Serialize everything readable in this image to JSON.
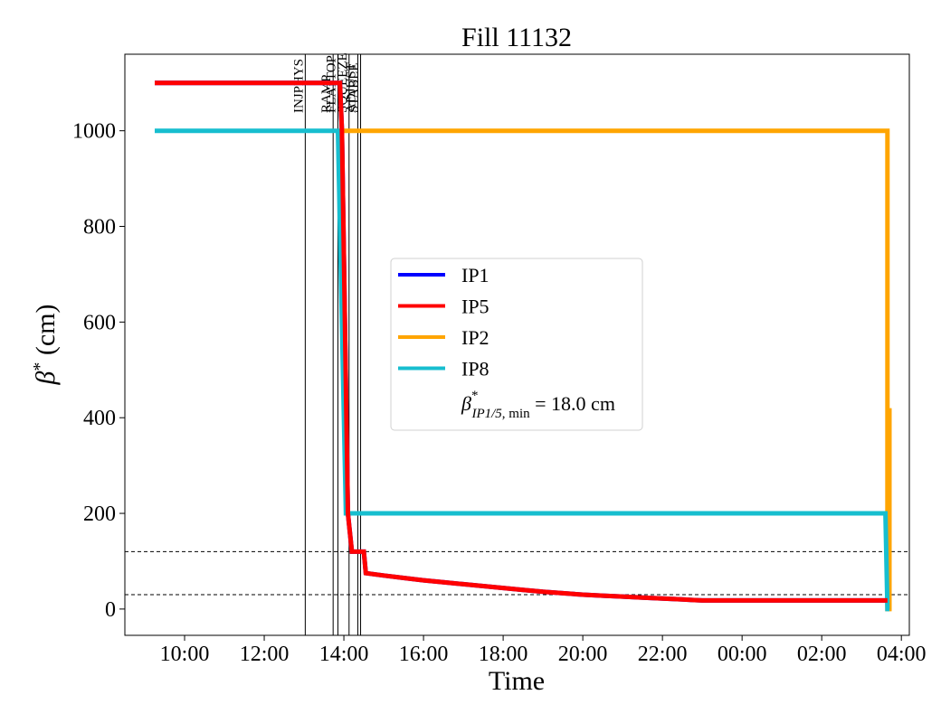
{
  "chart_data": {
    "type": "line",
    "title": "Fill 11132",
    "xlabel": "Time",
    "ylabel": "β* (cm)",
    "x_axis": "time-of-day (hours since 00:00 of fill start day)",
    "xlim": [
      8.5,
      28.2
    ],
    "ylim": [
      -55,
      1160
    ],
    "xticks": [
      {
        "value": 10,
        "label": "10:00"
      },
      {
        "value": 12,
        "label": "12:00"
      },
      {
        "value": 14,
        "label": "14:00"
      },
      {
        "value": 16,
        "label": "16:00"
      },
      {
        "value": 18,
        "label": "18:00"
      },
      {
        "value": 20,
        "label": "20:00"
      },
      {
        "value": 22,
        "label": "22:00"
      },
      {
        "value": 24,
        "label": "00:00"
      },
      {
        "value": 26,
        "label": "02:00"
      },
      {
        "value": 28,
        "label": "04:00"
      }
    ],
    "yticks": [
      0,
      200,
      400,
      600,
      800,
      1000
    ],
    "grid": false,
    "legend_position": "center",
    "phases": [
      {
        "label": "INJPHYS",
        "x": 13.03
      },
      {
        "label": "RAMP",
        "x": 13.73
      },
      {
        "label": "FLATTOP",
        "x": 13.85
      },
      {
        "label": "SQUEEZE",
        "x": 14.13
      },
      {
        "label": "ADJUST",
        "x": 14.35
      },
      {
        "label": "STABLE",
        "x": 14.42
      }
    ],
    "hlines": [
      120,
      30
    ],
    "series": [
      {
        "name": "IP1",
        "color": "#0000ff",
        "x": [
          9.25,
          13.9,
          13.95,
          14.1,
          14.2,
          14.5,
          14.55,
          15.0,
          15.5,
          16.0,
          16.5,
          17.0,
          17.5,
          18.0,
          18.5,
          19.0,
          19.5,
          20.0,
          20.5,
          21.0,
          21.5,
          22.0,
          22.5,
          23.0,
          27.65
        ],
        "y": [
          1100,
          1100,
          1000,
          200,
          120,
          120,
          75,
          70,
          65,
          60,
          56,
          52,
          48,
          44,
          40,
          36,
          33,
          30,
          28,
          26,
          24,
          22,
          20,
          18,
          18
        ]
      },
      {
        "name": "IP5",
        "color": "#ff0000",
        "x": [
          9.25,
          13.9,
          13.95,
          14.1,
          14.2,
          14.5,
          14.55,
          15.0,
          15.5,
          16.0,
          16.5,
          17.0,
          17.5,
          18.0,
          18.5,
          19.0,
          19.5,
          20.0,
          20.5,
          21.0,
          21.5,
          22.0,
          22.5,
          23.0,
          27.65
        ],
        "y": [
          1100,
          1100,
          1000,
          200,
          120,
          120,
          75,
          70,
          65,
          60,
          56,
          52,
          48,
          44,
          40,
          36,
          33,
          30,
          28,
          26,
          24,
          22,
          20,
          18,
          18
        ]
      },
      {
        "name": "IP2",
        "color": "#ffa500",
        "x": [
          13.9,
          27.65,
          27.65,
          27.7,
          27.7
        ],
        "y": [
          1000,
          1000,
          0,
          0,
          420
        ]
      },
      {
        "name": "IP8",
        "color": "#17becf",
        "x": [
          9.25,
          13.85,
          14.05,
          27.6,
          27.65,
          27.7
        ],
        "y": [
          1000,
          1000,
          200,
          200,
          0,
          0
        ]
      }
    ],
    "legend_extra": {
      "label": "β*IP1/5, min = 18.0 cm"
    }
  }
}
